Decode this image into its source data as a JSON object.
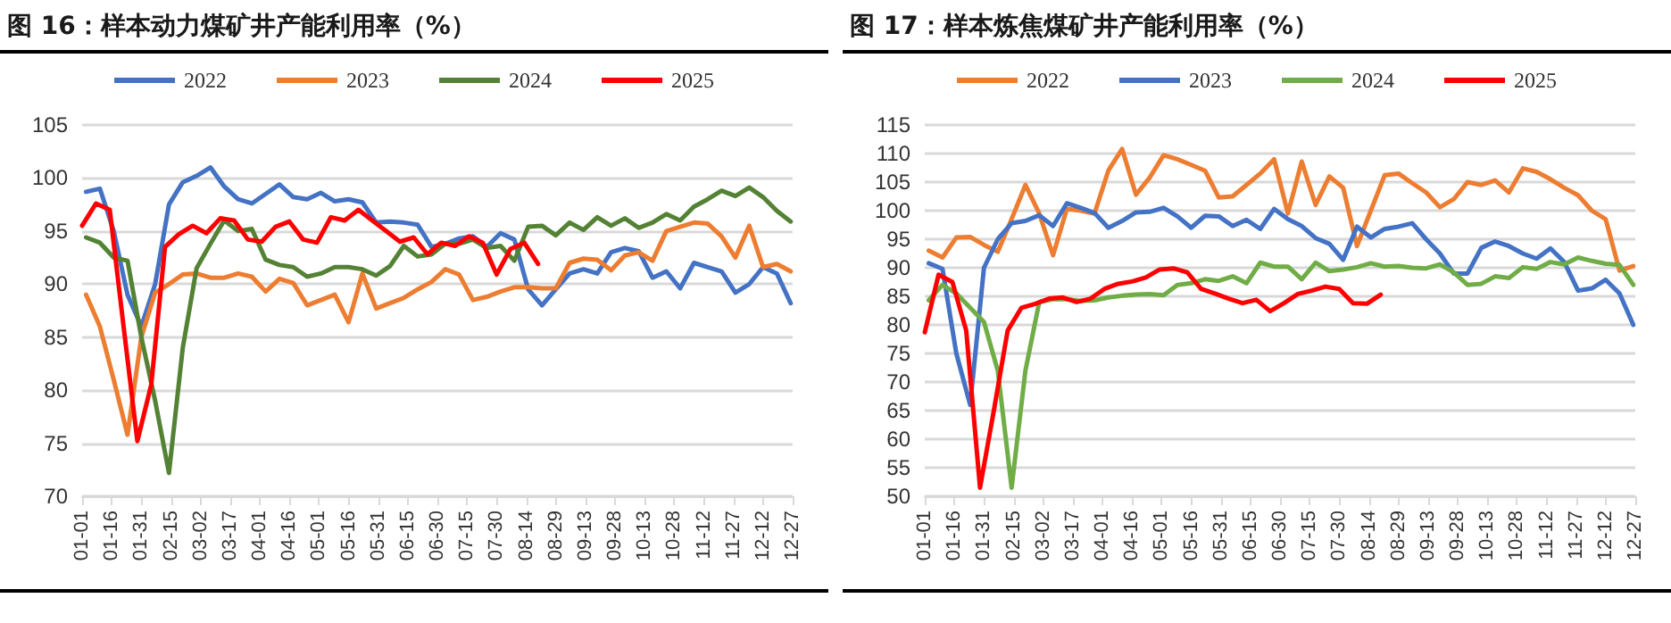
{
  "chart_data": [
    {
      "type": "line",
      "title": "图 16：样本动力煤矿井产能利用率（%）",
      "x": [
        "--01-03",
        "--01-10",
        "--01-17",
        "--01-24",
        "--01-31",
        "--02-07",
        "--02-14",
        "--02-21",
        "--02-28",
        "--03-07",
        "--03-14",
        "--03-21",
        "--03-28",
        "--04-04",
        "--04-11",
        "--04-18",
        "--04-25",
        "--05-02",
        "--05-09",
        "--05-16",
        "--05-23",
        "--05-30",
        "--06-06",
        "--06-13",
        "--06-20",
        "--06-27",
        "--07-04",
        "--07-11",
        "--07-18",
        "--07-25",
        "--08-01",
        "--08-08",
        "--08-15",
        "--08-22",
        "--08-29",
        "--09-05",
        "--09-12",
        "--09-19",
        "--09-26",
        "--10-03",
        "--10-10",
        "--10-17",
        "--10-24",
        "--10-31",
        "--11-07",
        "--11-14",
        "--11-21",
        "--11-28",
        "--12-05",
        "--12-12",
        "--12-19",
        "--12-26"
      ],
      "xlim": [
        "--01-01",
        "--12-27"
      ],
      "xticks": [
        {
          "value": "--01-01",
          "label": "01-01"
        },
        {
          "value": "--01-16",
          "label": "01-16"
        },
        {
          "value": "--01-31",
          "label": "01-31"
        },
        {
          "value": "--02-15",
          "label": "02-15"
        },
        {
          "value": "--03-02",
          "label": "03-02"
        },
        {
          "value": "--03-17",
          "label": "03-17"
        },
        {
          "value": "--04-01",
          "label": "04-01"
        },
        {
          "value": "--04-16",
          "label": "04-16"
        },
        {
          "value": "--05-01",
          "label": "05-01"
        },
        {
          "value": "--05-16",
          "label": "05-16"
        },
        {
          "value": "--05-31",
          "label": "05-31"
        },
        {
          "value": "--06-15",
          "label": "06-15"
        },
        {
          "value": "--06-30",
          "label": "06-30"
        },
        {
          "value": "--07-15",
          "label": "07-15"
        },
        {
          "value": "--07-30",
          "label": "07-30"
        },
        {
          "value": "--08-14",
          "label": "08-14"
        },
        {
          "value": "--08-29",
          "label": "08-29"
        },
        {
          "value": "--09-13",
          "label": "09-13"
        },
        {
          "value": "--09-28",
          "label": "09-28"
        },
        {
          "value": "--10-13",
          "label": "10-13"
        },
        {
          "value": "--10-28",
          "label": "10-28"
        },
        {
          "value": "--11-12",
          "label": "11-12"
        },
        {
          "value": "--11-27",
          "label": "11-27"
        },
        {
          "value": "--12-12",
          "label": "12-12"
        },
        {
          "value": "--12-27",
          "label": "12-27"
        }
      ],
      "ylim": [
        70,
        105
      ],
      "yticks": [
        70,
        75,
        80,
        85,
        90,
        95,
        100,
        105
      ],
      "grid": "y",
      "legend": "top",
      "marker": "none",
      "series": [
        {
          "name": "2022",
          "color": "#4472c4",
          "values": [
            98.7,
            99.0,
            95,
            89,
            86,
            90,
            97.5,
            99.6,
            100.2,
            101,
            99.2,
            98,
            97.6,
            98.5,
            99.4,
            98.2,
            98,
            98.6,
            97.8,
            98,
            97.7,
            95.8,
            95.9,
            95.8,
            95.6,
            93.5,
            93.8,
            94.3,
            94.5,
            93.5,
            94.8,
            94.2,
            89.5,
            88,
            89.5,
            91,
            91.4,
            91,
            93,
            93.4,
            93.1,
            90.6,
            91.2,
            89.6,
            92,
            91.6,
            91.2,
            89.2,
            90,
            91.6,
            91,
            88.2
          ]
        },
        {
          "name": "2023",
          "color": "#ed7d31",
          "values": [
            89,
            86,
            81,
            75.8,
            85,
            89.2,
            90,
            90.9,
            91,
            90.6,
            90.6,
            91,
            90.7,
            89.3,
            90.5,
            90.1,
            88,
            88.5,
            89,
            86.4,
            91,
            87.7,
            88.2,
            88.7,
            89.5,
            90.2,
            91.4,
            90.9,
            88.5,
            88.8,
            89.3,
            89.7,
            89.7,
            89.6,
            89.6,
            92,
            92.4,
            92.3,
            91.3,
            92.7,
            93,
            92.2,
            95,
            95.4,
            95.8,
            95.7,
            94.5,
            92.5,
            95.5,
            91.6,
            91.9,
            91.2
          ]
        },
        {
          "name": "2024",
          "color": "#548235",
          "values": [
            94.4,
            93.9,
            92.5,
            92.2,
            85,
            79,
            72.2,
            84,
            91.5,
            93.8,
            96,
            95,
            95.2,
            92.3,
            91.8,
            91.6,
            90.7,
            91,
            91.6,
            91.6,
            91.4,
            90.8,
            91.7,
            93.6,
            92.6,
            92.8,
            93.8,
            93.8,
            94.2,
            93.4,
            93.6,
            92.2,
            95.4,
            95.5,
            94.6,
            95.8,
            95.1,
            96.3,
            95.5,
            96.2,
            95.3,
            95.8,
            96.6,
            96,
            97.3,
            98,
            98.8,
            98.3,
            99.1,
            98.2,
            96.9,
            95.9
          ]
        },
        {
          "name": "2025",
          "color": "#ff0000",
          "x": [
            "--01-01",
            "--01-08",
            "--01-15",
            "--01-22",
            "--01-29",
            "--02-05",
            "--02-12",
            "--02-19",
            "--02-26",
            "--03-05",
            "--03-12",
            "--03-19",
            "--03-26",
            "--04-02",
            "--04-09",
            "--04-16",
            "--04-23",
            "--04-30",
            "--05-07",
            "--05-14",
            "--05-21",
            "--05-28",
            "--06-04",
            "--06-11",
            "--06-18",
            "--06-25",
            "--07-02",
            "--07-09",
            "--07-16",
            "--07-23",
            "--07-30",
            "--08-06",
            "--08-13",
            "--08-20"
          ],
          "values": [
            95.5,
            97.6,
            97,
            86,
            75.2,
            80.5,
            93.5,
            94.7,
            95.5,
            94.8,
            96.2,
            96,
            94.2,
            94,
            95.4,
            95.9,
            94.2,
            93.9,
            96.3,
            96,
            97,
            96,
            95,
            94,
            94.4,
            92.8,
            93.9,
            93.6,
            94.5,
            93.9,
            90.9,
            93.3,
            93.9,
            91.9
          ]
        }
      ]
    },
    {
      "type": "line",
      "title": "图 17：样本炼焦煤矿井产能利用率（%）",
      "x": [
        "--01-03",
        "--01-10",
        "--01-17",
        "--01-24",
        "--01-31",
        "--02-07",
        "--02-14",
        "--02-21",
        "--02-28",
        "--03-07",
        "--03-14",
        "--03-21",
        "--03-28",
        "--04-04",
        "--04-11",
        "--04-18",
        "--04-25",
        "--05-02",
        "--05-09",
        "--05-16",
        "--05-23",
        "--05-30",
        "--06-06",
        "--06-13",
        "--06-20",
        "--06-27",
        "--07-04",
        "--07-11",
        "--07-18",
        "--07-25",
        "--08-01",
        "--08-08",
        "--08-15",
        "--08-22",
        "--08-29",
        "--09-05",
        "--09-12",
        "--09-19",
        "--09-26",
        "--10-03",
        "--10-10",
        "--10-17",
        "--10-24",
        "--10-31",
        "--11-07",
        "--11-14",
        "--11-21",
        "--11-28",
        "--12-05",
        "--12-12",
        "--12-19",
        "--12-26"
      ],
      "xlim": [
        "--01-01",
        "--12-27"
      ],
      "xticks": [
        {
          "value": "--01-01",
          "label": "01-01"
        },
        {
          "value": "--01-16",
          "label": "01-16"
        },
        {
          "value": "--01-31",
          "label": "01-31"
        },
        {
          "value": "--02-15",
          "label": "02-15"
        },
        {
          "value": "--03-02",
          "label": "03-02"
        },
        {
          "value": "--03-17",
          "label": "03-17"
        },
        {
          "value": "--04-01",
          "label": "04-01"
        },
        {
          "value": "--04-16",
          "label": "04-16"
        },
        {
          "value": "--05-01",
          "label": "05-01"
        },
        {
          "value": "--05-16",
          "label": "05-16"
        },
        {
          "value": "--05-31",
          "label": "05-31"
        },
        {
          "value": "--06-15",
          "label": "06-15"
        },
        {
          "value": "--06-30",
          "label": "06-30"
        },
        {
          "value": "--07-15",
          "label": "07-15"
        },
        {
          "value": "--07-30",
          "label": "07-30"
        },
        {
          "value": "--08-14",
          "label": "08-14"
        },
        {
          "value": "--08-29",
          "label": "08-29"
        },
        {
          "value": "--09-13",
          "label": "09-13"
        },
        {
          "value": "--09-28",
          "label": "09-28"
        },
        {
          "value": "--10-13",
          "label": "10-13"
        },
        {
          "value": "--10-28",
          "label": "10-28"
        },
        {
          "value": "--11-12",
          "label": "11-12"
        },
        {
          "value": "--11-27",
          "label": "11-27"
        },
        {
          "value": "--12-12",
          "label": "12-12"
        },
        {
          "value": "--12-27",
          "label": "12-27"
        }
      ],
      "ylim": [
        50,
        115
      ],
      "yticks": [
        50,
        55,
        60,
        65,
        70,
        75,
        80,
        85,
        90,
        95,
        100,
        105,
        110,
        115
      ],
      "grid": "y",
      "legend": "top",
      "marker": "none",
      "series": [
        {
          "name": "2022",
          "color": "#ed7d31",
          "values": [
            93,
            91.8,
            95.3,
            95.4,
            94,
            92.8,
            98.5,
            104.5,
            99.5,
            92.2,
            100.3,
            100,
            99.5,
            107,
            110.8,
            102.8,
            105.8,
            109.7,
            109,
            108,
            107,
            102.3,
            102.5,
            104.5,
            106.5,
            109,
            99.5,
            108.6,
            101,
            106,
            104,
            93.8,
            100,
            106.2,
            106.5,
            104.8,
            103.2,
            100.6,
            102,
            105,
            104.5,
            105.3,
            103.2,
            107.4,
            106.8,
            105.5,
            104,
            102.7,
            100,
            98.5,
            89.5,
            90.3
          ]
        },
        {
          "name": "2023",
          "color": "#4472c4",
          "values": [
            90.8,
            89.8,
            75,
            66,
            90,
            95,
            97.8,
            98.2,
            99.2,
            97.3,
            101.3,
            100.5,
            99.6,
            97,
            98.2,
            99.7,
            99.8,
            100.5,
            99,
            97,
            99.1,
            99,
            97.3,
            98.4,
            96.8,
            100.3,
            98.5,
            97.3,
            95.2,
            94.2,
            91.4,
            97.2,
            95.3,
            96.8,
            97.2,
            97.8,
            95,
            92.5,
            89,
            89,
            93.5,
            94.6,
            93.8,
            92.5,
            91.6,
            93.4,
            91,
            86,
            86.4,
            87.9,
            85.5,
            80
          ]
        },
        {
          "name": "2024",
          "color": "#70ad47",
          "values": [
            84.3,
            87,
            85.5,
            83,
            80.5,
            72,
            51.5,
            72,
            84,
            84.5,
            84.5,
            84.2,
            84.3,
            84.8,
            85.1,
            85.3,
            85.4,
            85.2,
            87,
            87.3,
            88,
            87.7,
            88.5,
            87.3,
            90.9,
            90.2,
            90.2,
            88,
            90.9,
            89.4,
            89.7,
            90.1,
            90.8,
            90.2,
            90.3,
            90,
            89.9,
            90.6,
            89.2,
            87,
            87.2,
            88.5,
            88.2,
            90.1,
            89.8,
            91,
            90.6,
            91.8,
            91.2,
            90.7,
            90.5,
            87
          ]
        },
        {
          "name": "2025",
          "color": "#ff0000",
          "x": [
            "--01-01",
            "--01-08",
            "--01-15",
            "--01-22",
            "--01-29",
            "--02-05",
            "--02-12",
            "--02-19",
            "--02-26",
            "--03-05",
            "--03-12",
            "--03-19",
            "--03-26",
            "--04-02",
            "--04-09",
            "--04-16",
            "--04-23",
            "--04-30",
            "--05-07",
            "--05-14",
            "--05-21",
            "--05-28",
            "--06-04",
            "--06-11",
            "--06-18",
            "--06-25",
            "--07-02",
            "--07-09",
            "--07-16",
            "--07-23",
            "--07-30",
            "--08-06",
            "--08-13",
            "--08-20"
          ],
          "values": [
            78.7,
            88.8,
            87.5,
            79,
            51.5,
            65,
            79,
            83,
            83.7,
            84.6,
            84.8,
            84,
            84.6,
            86.3,
            87.2,
            87.6,
            88.3,
            89.7,
            89.9,
            89.2,
            86.3,
            85.5,
            84.6,
            83.8,
            84.4,
            82.4,
            83.8,
            85.4,
            86,
            86.7,
            86.3,
            83.8,
            83.7,
            85.3
          ]
        }
      ]
    }
  ]
}
